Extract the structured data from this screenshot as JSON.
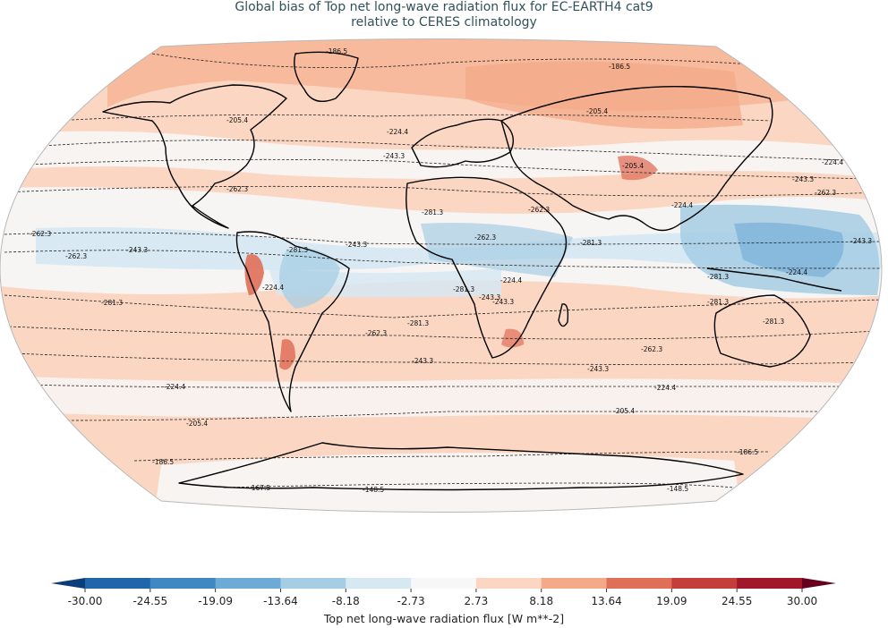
{
  "title": {
    "line1": "Global bias of Top net long-wave radiation flux for EC-EARTH4 cat9",
    "line2": "relative to CERES climatology"
  },
  "colorbar": {
    "label": "Top net long-wave radiation flux [W m**-2]",
    "ticks": [
      "-30.00",
      "-24.55",
      "-19.09",
      "-13.64",
      "-8.18",
      "-2.73",
      "2.73",
      "8.18",
      "13.64",
      "19.09",
      "24.55",
      "30.00"
    ],
    "colors": [
      "#08306b",
      "#2166ac",
      "#4393c3",
      "#92c5de",
      "#d1e5f0",
      "#f7f7f7",
      "#fddbc7",
      "#f4a582",
      "#d6604d",
      "#b2182b",
      "#67001f"
    ],
    "bin_colors": [
      "#2166ac",
      "#3f88c3",
      "#6eaad6",
      "#a6cde3",
      "#d6e8f2",
      "#f7f7f7",
      "#fbd7c3",
      "#f4aa88",
      "#e06f58",
      "#c43e3b",
      "#a11628"
    ]
  },
  "contour_labels": [
    "-186.5",
    "-186.5",
    "-205.4",
    "-205.4",
    "-205.4",
    "-224.4",
    "-224.4",
    "-243.3",
    "-243.3",
    "-262.3",
    "-262.3",
    "-262.3",
    "-281.3",
    "-262.3",
    "-243.3",
    "-262.3",
    "-224.4",
    "-281.3",
    "-281.3",
    "-224.4",
    "-243.3",
    "-281.3",
    "-262.3",
    "-243.3",
    "-243.3",
    "-224.4",
    "-224.4",
    "-205.4",
    "-186.5",
    "-186.5",
    "-167.5",
    "-148.5",
    "-148.5",
    "-281.3",
    "-243.3",
    "-281.3",
    "-281.3",
    "-224.4",
    "-262.3",
    "-243.3",
    "-224.4",
    "-205.4",
    "-243.3",
    "-281.3",
    "-281.3",
    "-262.3"
  ]
}
